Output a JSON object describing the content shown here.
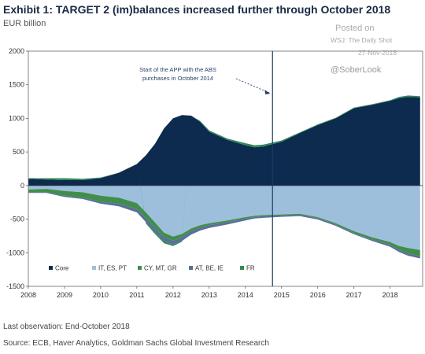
{
  "header": {
    "title": "Exhibit 1: TARGET 2 (im)balances increased further through October 2018",
    "unit": "EUR billion"
  },
  "watermark": {
    "posted": "Posted on",
    "source": "WSJ: The Daily Shot",
    "date": "27-Nov-2018",
    "handle": "@SoberLook"
  },
  "footer": {
    "note": "Last observation: End-October 2018",
    "source": "Source: ECB, Haver Analytics, Goldman Sachs Global Investment Research"
  },
  "chart_data": {
    "type": "area",
    "stacked": true,
    "title": "",
    "xlabel": "",
    "ylabel": "",
    "ylim": [
      -1500,
      2000
    ],
    "yticks": [
      2000,
      1500,
      1000,
      500,
      0,
      -500,
      -1000,
      -1500
    ],
    "xlim": [
      2008,
      2018.9
    ],
    "xticks": [
      "2008",
      "2009",
      "2010",
      "2011",
      "2012",
      "2013",
      "2014",
      "2015",
      "2016",
      "2017",
      "2018"
    ],
    "grid": false,
    "legend_position": "bottom-left",
    "x": [
      2008.0,
      2008.5,
      2009.0,
      2009.5,
      2010.0,
      2010.5,
      2011.0,
      2011.25,
      2011.5,
      2011.75,
      2012.0,
      2012.25,
      2012.5,
      2012.75,
      2013.0,
      2013.5,
      2014.0,
      2014.25,
      2014.5,
      2015.0,
      2015.5,
      2016.0,
      2016.5,
      2017.0,
      2017.5,
      2018.0,
      2018.25,
      2018.5,
      2018.83
    ],
    "series": [
      {
        "name": "Core",
        "color": "#0d2a4f",
        "values": [
          100,
          90,
          80,
          80,
          110,
          190,
          320,
          450,
          620,
          850,
          1000,
          1050,
          1040,
          950,
          800,
          680,
          600,
          570,
          580,
          650,
          780,
          900,
          1000,
          1150,
          1200,
          1260,
          1300,
          1320,
          1310
        ]
      },
      {
        "name": "IT, ES, PT",
        "color": "#9dbfdc",
        "values": [
          -60,
          -50,
          -80,
          -100,
          -150,
          -180,
          -260,
          -400,
          -550,
          -700,
          -760,
          -720,
          -640,
          -590,
          -560,
          -520,
          -470,
          -450,
          -440,
          -430,
          -420,
          -470,
          -560,
          -680,
          -770,
          -840,
          -900,
          -930,
          -960
        ]
      },
      {
        "name": "CY, MT, GR",
        "color": "#3f8f4a",
        "values": [
          -40,
          -50,
          -70,
          -80,
          -90,
          -90,
          -90,
          -85,
          -80,
          -70,
          -60,
          -50,
          -40,
          -35,
          -30,
          -25,
          -20,
          -15,
          -15,
          -15,
          -15,
          -15,
          -20,
          -25,
          -30,
          -40,
          -60,
          -80,
          -90
        ]
      },
      {
        "name": "AT, BE, IE",
        "color": "#5b6e9a",
        "values": [
          -10,
          -10,
          -20,
          -20,
          -30,
          -40,
          -50,
          -60,
          -60,
          -60,
          -60,
          -55,
          -50,
          -45,
          -40,
          -35,
          -30,
          -25,
          -25,
          -20,
          -20,
          -20,
          -20,
          -20,
          -25,
          -30,
          -30,
          -35,
          -35
        ]
      },
      {
        "name": "FR",
        "color": "#2f8a57",
        "values": [
          10,
          20,
          30,
          20,
          10,
          0,
          0,
          -20,
          -30,
          -30,
          -20,
          -10,
          0,
          10,
          20,
          20,
          30,
          30,
          30,
          20,
          10,
          10,
          10,
          10,
          10,
          10,
          20,
          20,
          20
        ]
      }
    ],
    "annotations": [
      {
        "text_lines": [
          "Start of the APP with the ABS",
          "purchases in October 2014"
        ],
        "x": 2014.75
      }
    ]
  }
}
